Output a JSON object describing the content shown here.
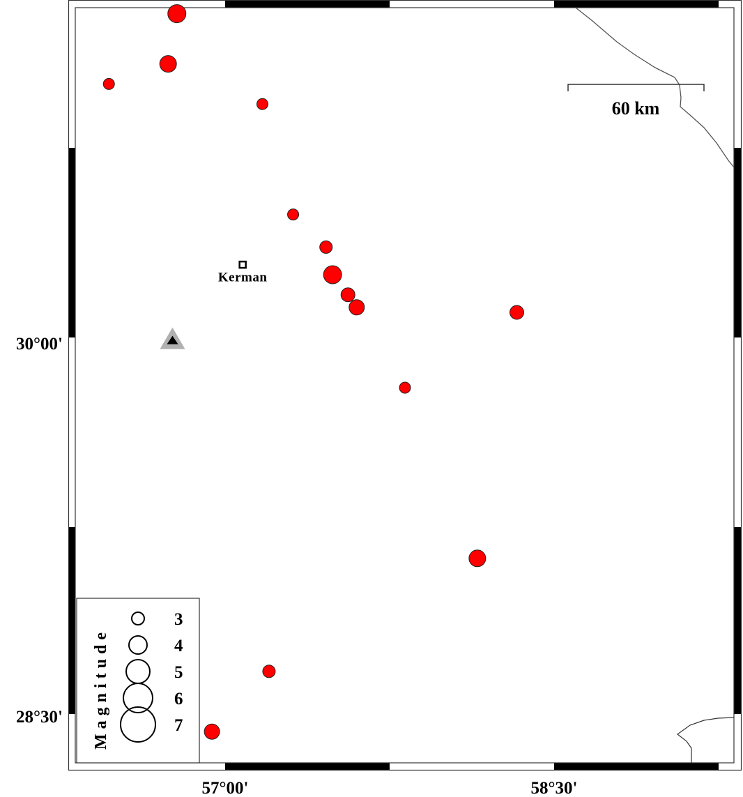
{
  "map": {
    "region": {
      "lon_min_label": "57°00'",
      "lon_max_label": "58°30'"
    },
    "axis_labels": {
      "lon": [
        {
          "value": 57.0,
          "label": "57°00'"
        },
        {
          "value": 58.5,
          "label": "58°30'"
        }
      ],
      "lat": [
        {
          "value": 30.0,
          "label": "30°00'"
        },
        {
          "value": 28.5,
          "label": "28°30'"
        }
      ]
    },
    "scale_bar": {
      "label": "60 km"
    },
    "city": {
      "name": "Kerman",
      "lon": 57.08,
      "lat": 30.29
    },
    "station": {
      "lon": 56.76,
      "lat": 29.99,
      "color": "#000000",
      "halo_color": "#b0b0b0"
    },
    "event_color": "#ff0000",
    "events": [
      {
        "lon": 56.78,
        "lat": 31.29,
        "mag": 3.75
      },
      {
        "lon": 56.74,
        "lat": 31.09,
        "mag": 3.5
      },
      {
        "lon": 56.47,
        "lat": 31.01,
        "mag": 2.5
      },
      {
        "lon": 57.17,
        "lat": 30.93,
        "mag": 2.5
      },
      {
        "lon": 57.31,
        "lat": 30.49,
        "mag": 2.5
      },
      {
        "lon": 57.46,
        "lat": 30.36,
        "mag": 2.75
      },
      {
        "lon": 57.49,
        "lat": 30.25,
        "mag": 3.75
      },
      {
        "lon": 57.56,
        "lat": 30.17,
        "mag": 3.0
      },
      {
        "lon": 57.6,
        "lat": 30.12,
        "mag": 3.25
      },
      {
        "lon": 58.33,
        "lat": 30.1,
        "mag": 3.0
      },
      {
        "lon": 57.82,
        "lat": 29.8,
        "mag": 2.5
      },
      {
        "lon": 58.15,
        "lat": 29.12,
        "mag": 3.5
      },
      {
        "lon": 57.2,
        "lat": 28.67,
        "mag": 2.75
      },
      {
        "lon": 56.94,
        "lat": 28.43,
        "mag": 3.25
      }
    ],
    "legend": {
      "title": "Magnitude",
      "items": [
        {
          "mag": 3,
          "label": "3"
        },
        {
          "mag": 4,
          "label": "4"
        },
        {
          "mag": 5,
          "label": "5"
        },
        {
          "mag": 6,
          "label": "6"
        },
        {
          "mag": 7,
          "label": "7"
        }
      ]
    }
  }
}
